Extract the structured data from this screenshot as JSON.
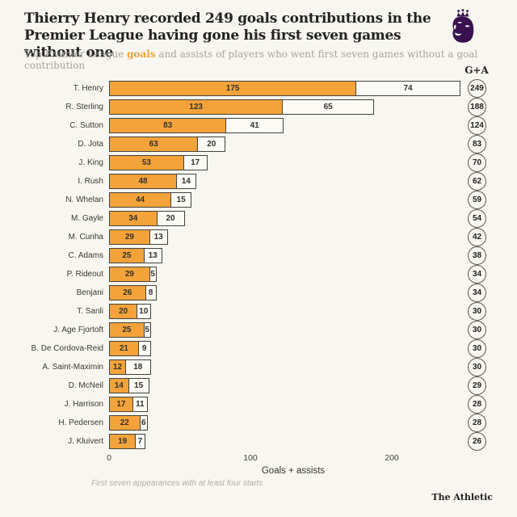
{
  "header": {
    "title_line1": "Thierry Henry recorded 249 goals contributions in the",
    "title_line2": "Premier League having gone his first seven games without one",
    "subtitle_prefix": "Top Premier League ",
    "subtitle_highlight": "goals",
    "subtitle_suffix": " and assists of players who went first seven games without a goal contribution",
    "logo_name": "premier-league-lion-logo",
    "logo_color": "#3A1150"
  },
  "chart_data": {
    "type": "bar",
    "orientation": "horizontal",
    "stacked": true,
    "column_header": "G+A",
    "xlabel": "Goals + assists",
    "x_ticks": [
      0,
      100,
      200
    ],
    "xlim": [
      0,
      260
    ],
    "grid": false,
    "legend": "none",
    "colors": {
      "goals": "#F4A33A",
      "assists": "#FBFAF5",
      "bar_border": "#44423C"
    },
    "series_names": [
      "Goals",
      "Assists"
    ],
    "players": [
      {
        "name": "T. Henry",
        "goals": 175,
        "assists": 74,
        "total": 249
      },
      {
        "name": "R. Sterling",
        "goals": 123,
        "assists": 65,
        "total": 188
      },
      {
        "name": "C. Sutton",
        "goals": 83,
        "assists": 41,
        "total": 124
      },
      {
        "name": "D. Jota",
        "goals": 63,
        "assists": 20,
        "total": 83
      },
      {
        "name": "J. King",
        "goals": 53,
        "assists": 17,
        "total": 70
      },
      {
        "name": "I. Rush",
        "goals": 48,
        "assists": 14,
        "total": 62
      },
      {
        "name": "N. Whelan",
        "goals": 44,
        "assists": 15,
        "total": 59
      },
      {
        "name": "M. Gayle",
        "goals": 34,
        "assists": 20,
        "total": 54
      },
      {
        "name": "M. Cunha",
        "goals": 29,
        "assists": 13,
        "total": 42
      },
      {
        "name": "C. Adams",
        "goals": 25,
        "assists": 13,
        "total": 38
      },
      {
        "name": "P. Rideout",
        "goals": 29,
        "assists": 5,
        "total": 34
      },
      {
        "name": "Benjani",
        "goals": 26,
        "assists": 8,
        "total": 34
      },
      {
        "name": "T. Sanli",
        "goals": 20,
        "assists": 10,
        "total": 30
      },
      {
        "name": "J. Age Fjortoft",
        "goals": 25,
        "assists": 5,
        "total": 30
      },
      {
        "name": "B. De Cordova-Reid",
        "goals": 21,
        "assists": 9,
        "total": 30
      },
      {
        "name": "A. Saint-Maximin",
        "goals": 12,
        "assists": 18,
        "total": 30
      },
      {
        "name": "D. McNeil",
        "goals": 14,
        "assists": 15,
        "total": 29
      },
      {
        "name": "J. Harrison",
        "goals": 17,
        "assists": 11,
        "total": 28
      },
      {
        "name": "H. Pedersen",
        "goals": 22,
        "assists": 6,
        "total": 28
      },
      {
        "name": "J. Kluivert",
        "goals": 19,
        "assists": 7,
        "total": 26
      }
    ]
  },
  "footer": {
    "note": "First seven appearances with at least four starts",
    "credit": "The Athletic"
  }
}
